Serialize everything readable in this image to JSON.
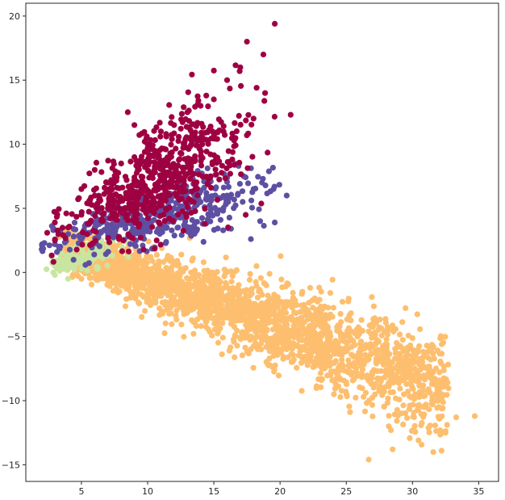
{
  "chart_data": {
    "type": "scatter",
    "title": "",
    "xlabel": "",
    "ylabel": "",
    "xlim": [
      0.8,
      36.5
    ],
    "ylim": [
      -16.3,
      21.0
    ],
    "x_ticks": [
      5,
      10,
      15,
      20,
      25,
      30,
      35
    ],
    "y_ticks": [
      -15,
      -10,
      -5,
      0,
      5,
      10,
      15,
      20
    ],
    "grid": false,
    "legend": "none",
    "series": [
      {
        "color": "#9e0142",
        "points_shown": 650,
        "core": {
          "x_range": [
            2.5,
            19.5
          ],
          "center": [
            11,
            7.5
          ],
          "trend_slope": 0.52
        },
        "sample_points": [
          [
            3,
            2.5
          ],
          [
            4,
            3.5
          ],
          [
            5,
            4.5
          ],
          [
            6,
            6
          ],
          [
            7,
            7
          ],
          [
            8,
            8.5
          ],
          [
            9,
            9
          ],
          [
            10,
            10
          ],
          [
            11,
            11
          ],
          [
            12,
            11.5
          ],
          [
            13,
            12.5
          ],
          [
            14,
            13
          ],
          [
            15,
            13.5
          ],
          [
            16,
            15
          ],
          [
            17,
            16
          ],
          [
            17.5,
            18
          ],
          [
            19.6,
            19.4
          ],
          [
            20.8,
            12.3
          ],
          [
            18,
            12
          ],
          [
            6,
            8
          ],
          [
            5,
            6.5
          ],
          [
            9,
            11.5
          ],
          [
            8.5,
            12.5
          ]
        ]
      },
      {
        "color": "#5e4fa2",
        "points_shown": 420,
        "core": {
          "x_range": [
            2,
            20
          ],
          "center": [
            11,
            4.5
          ],
          "trend_slope": 0.25
        },
        "sample_points": [
          [
            2,
            1.8
          ],
          [
            3,
            2.2
          ],
          [
            4,
            3
          ],
          [
            6,
            3.5
          ],
          [
            8,
            4
          ],
          [
            10,
            4.5
          ],
          [
            12,
            5
          ],
          [
            14,
            5.5
          ],
          [
            16,
            6
          ],
          [
            18,
            6.5
          ],
          [
            19.5,
            6.5
          ],
          [
            20.5,
            6
          ],
          [
            18.5,
            4
          ],
          [
            17.8,
            2.6
          ],
          [
            19.6,
            3.9
          ],
          [
            13,
            3.2
          ],
          [
            9,
            2.2
          ],
          [
            11,
            3.5
          ]
        ]
      },
      {
        "color": "#c8e6a0",
        "points_shown": 110,
        "core": {
          "x_range": [
            2.8,
            9
          ],
          "center": [
            5,
            1.2
          ],
          "trend_slope": 0.3
        },
        "sample_points": [
          [
            3,
            0.5
          ],
          [
            3.5,
            1.5
          ],
          [
            4,
            0.8
          ],
          [
            4.5,
            1.8
          ],
          [
            5,
            0.3
          ],
          [
            5.5,
            2.2
          ],
          [
            6,
            1.5
          ],
          [
            6.5,
            2.5
          ],
          [
            7,
            1.8
          ],
          [
            8,
            2.6
          ],
          [
            8.5,
            2.3
          ],
          [
            3,
            -0.2
          ],
          [
            4,
            -0.5
          ],
          [
            5,
            2.8
          ],
          [
            7.5,
            3
          ]
        ]
      },
      {
        "color": "#fdbf6f",
        "points_shown": 2600,
        "core": {
          "x_range": [
            4,
            35
          ],
          "center": [
            18,
            -3.5
          ],
          "trend_slope": -0.38
        },
        "sample_points": [
          [
            5,
            0.8
          ],
          [
            6,
            0
          ],
          [
            8,
            -1
          ],
          [
            10,
            -1.5
          ],
          [
            12,
            -2.2
          ],
          [
            14,
            -3
          ],
          [
            16,
            -3.5
          ],
          [
            18,
            -4
          ],
          [
            20,
            -4.8
          ],
          [
            22,
            -5.5
          ],
          [
            24,
            -6
          ],
          [
            26,
            -7
          ],
          [
            28,
            -8
          ],
          [
            30,
            -9
          ],
          [
            32,
            -10.5
          ],
          [
            34.7,
            -11.2
          ],
          [
            33.3,
            -11.3
          ],
          [
            32.5,
            -12.5
          ],
          [
            32.2,
            -13.9
          ],
          [
            28.5,
            -13.8
          ],
          [
            26.7,
            -14.6
          ],
          [
            30,
            -6.5
          ],
          [
            27,
            -5
          ],
          [
            23,
            -3.5
          ]
        ]
      }
    ]
  }
}
